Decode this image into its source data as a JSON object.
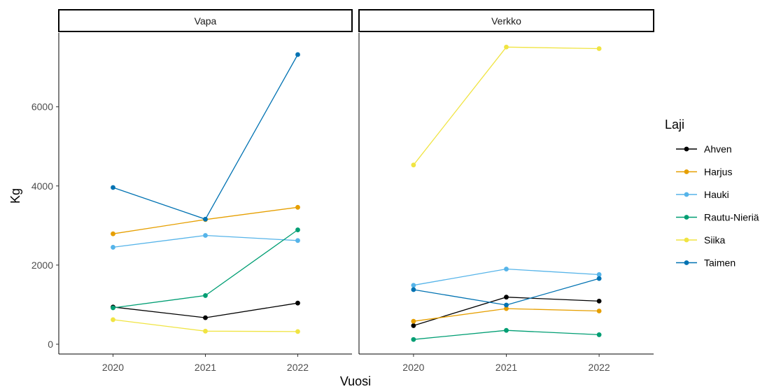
{
  "chart_data": {
    "type": "line",
    "facets": [
      "Vapa",
      "Verkko"
    ],
    "x": [
      2020,
      2021,
      2022
    ],
    "xlabel": "Vuosi",
    "ylabel": "Kg",
    "ylim": [
      -200,
      8200
    ],
    "yticks": [
      0,
      2000,
      4000,
      6000
    ],
    "grid": false,
    "legend": {
      "title": "Laji",
      "position": "right"
    },
    "series": [
      {
        "name": "Ahven",
        "color": "#000000",
        "values": {
          "Vapa": [
            940,
            670,
            1040
          ],
          "Verkko": [
            470,
            1190,
            1090
          ]
        }
      },
      {
        "name": "Harjus",
        "color": "#E69F00",
        "values": {
          "Vapa": [
            2790,
            3150,
            3460
          ],
          "Verkko": [
            580,
            900,
            840
          ]
        }
      },
      {
        "name": "Hauki",
        "color": "#56B4E9",
        "values": {
          "Vapa": [
            2450,
            2750,
            2620
          ],
          "Verkko": [
            1490,
            1900,
            1760
          ]
        }
      },
      {
        "name": "Rautu-Nieriä",
        "color": "#009E73",
        "values": {
          "Vapa": [
            920,
            1230,
            2890
          ],
          "Verkko": [
            120,
            350,
            240
          ]
        }
      },
      {
        "name": "Siika",
        "color": "#F0E442",
        "values": {
          "Vapa": [
            620,
            330,
            320
          ],
          "Verkko": [
            4530,
            7510,
            7470
          ]
        }
      },
      {
        "name": "Taimen",
        "color": "#0072B2",
        "values": {
          "Vapa": [
            3960,
            3160,
            7320
          ],
          "Verkko": [
            1380,
            990,
            1660
          ]
        }
      }
    ]
  }
}
